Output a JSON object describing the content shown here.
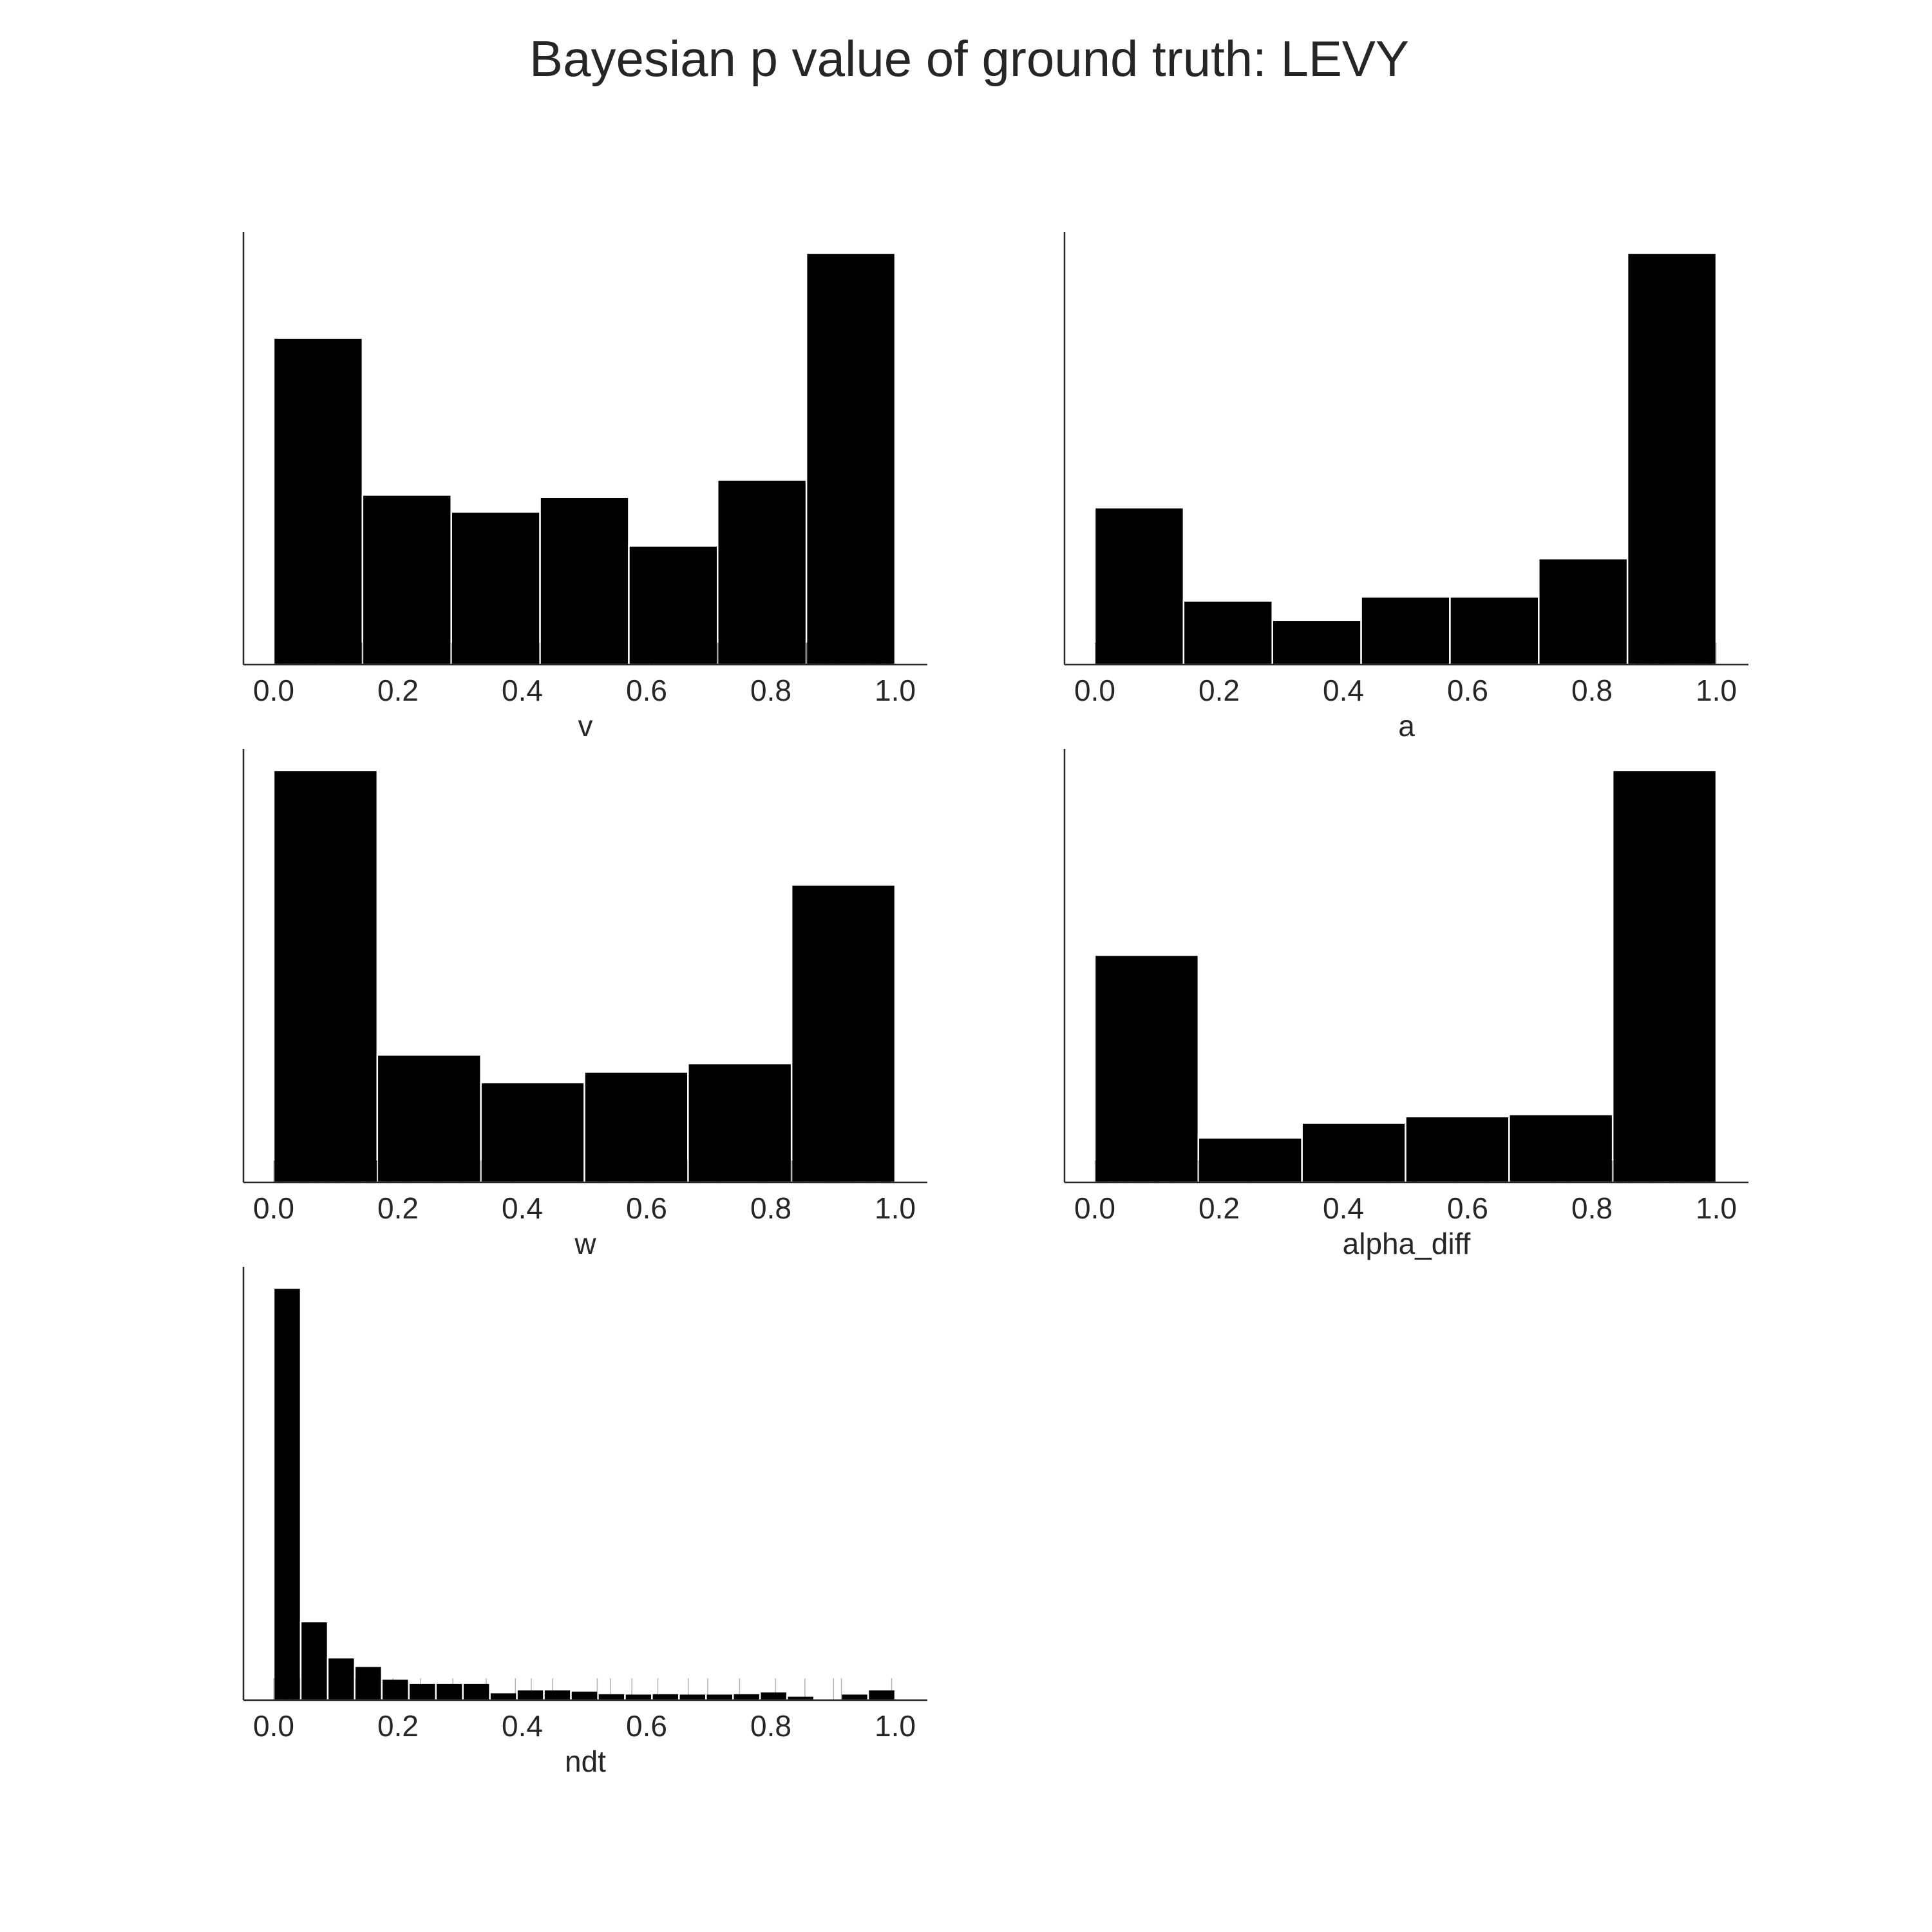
{
  "figure": {
    "title": "Bayesian p value of ground truth: LEVY"
  },
  "chart_data": [
    {
      "type": "bar",
      "xlabel": "v",
      "ylabel": "",
      "xlim": [
        0,
        1
      ],
      "xticks": [
        "0.0",
        "0.2",
        "0.4",
        "0.6",
        "0.8",
        "1.0"
      ],
      "bin_edges": [
        0,
        0.142857,
        0.285714,
        0.428571,
        0.571429,
        0.714286,
        0.857143,
        1.0
      ],
      "values": [
        0.77,
        0.4,
        0.36,
        0.395,
        0.28,
        0.435,
        0.97
      ],
      "ylim": [
        0,
        1.02
      ],
      "grid": false,
      "rug": true
    },
    {
      "type": "bar",
      "xlabel": "a",
      "ylabel": "",
      "xlim": [
        0,
        1
      ],
      "xticks": [
        "0.0",
        "0.2",
        "0.4",
        "0.6",
        "0.8",
        "1.0"
      ],
      "bin_edges": [
        0,
        0.142857,
        0.285714,
        0.428571,
        0.571429,
        0.714286,
        0.857143,
        1.0
      ],
      "values": [
        0.37,
        0.15,
        0.105,
        0.16,
        0.16,
        0.25,
        0.97
      ],
      "ylim": [
        0,
        1.02
      ],
      "grid": false,
      "rug": true
    },
    {
      "type": "bar",
      "xlabel": "w",
      "ylabel": "",
      "xlim": [
        0,
        1
      ],
      "xticks": [
        "0.0",
        "0.2",
        "0.4",
        "0.6",
        "0.8",
        "1.0"
      ],
      "bin_edges": [
        0,
        0.166667,
        0.333333,
        0.5,
        0.666667,
        0.833333,
        1.0
      ],
      "values": [
        0.97,
        0.3,
        0.235,
        0.26,
        0.28,
        0.7
      ],
      "ylim": [
        0,
        1.02
      ],
      "grid": false,
      "rug": true
    },
    {
      "type": "bar",
      "xlabel": "alpha_diff",
      "ylabel": "",
      "xlim": [
        0,
        1
      ],
      "xticks": [
        "0.0",
        "0.2",
        "0.4",
        "0.6",
        "0.8",
        "1.0"
      ],
      "bin_edges": [
        0,
        0.166667,
        0.333333,
        0.5,
        0.666667,
        0.833333,
        1.0
      ],
      "values": [
        0.535,
        0.105,
        0.14,
        0.155,
        0.16,
        0.97
      ],
      "ylim": [
        0,
        1.02
      ],
      "grid": false,
      "rug": true
    },
    {
      "type": "bar",
      "xlabel": "ndt",
      "ylabel": "",
      "xlim": [
        0,
        1
      ],
      "xticks": [
        "0.0",
        "0.2",
        "0.4",
        "0.6",
        "0.8",
        "1.0"
      ],
      "bin_edges": [
        0,
        0.043478,
        0.086957,
        0.130435,
        0.173913,
        0.217391,
        0.26087,
        0.304348,
        0.347826,
        0.391304,
        0.434783,
        0.478261,
        0.521739,
        0.565217,
        0.608696,
        0.652174,
        0.695652,
        0.73913,
        0.782609,
        0.826087,
        0.869565,
        0.913043,
        0.956522,
        1.0
      ],
      "values": [
        0.97,
        0.185,
        0.1,
        0.08,
        0.05,
        0.04,
        0.04,
        0.04,
        0.018,
        0.025,
        0.025,
        0.022,
        0.016,
        0.015,
        0.016,
        0.015,
        0.015,
        0.016,
        0.02,
        0.01,
        0.002,
        0.015,
        0.025
      ],
      "ylim": [
        0,
        1.02
      ],
      "grid": false,
      "rug": true
    }
  ]
}
